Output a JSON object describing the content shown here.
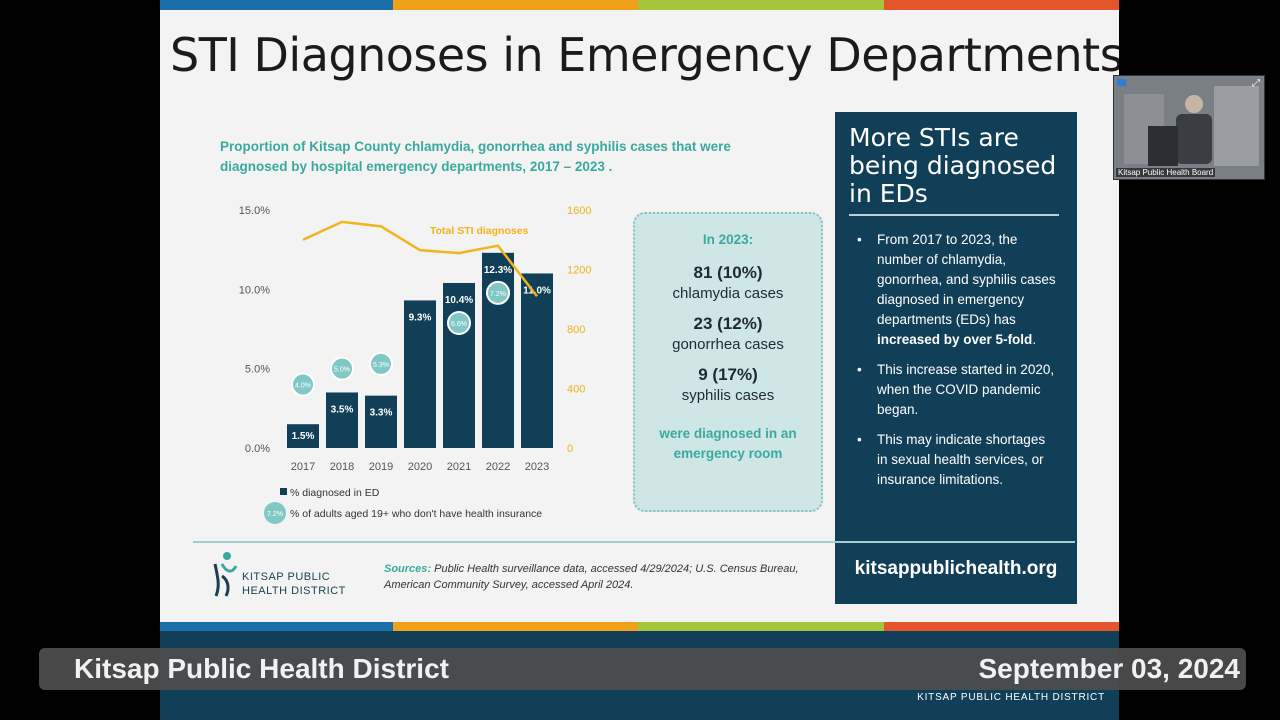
{
  "slide": {
    "title": "STI Diagnoses in Emergency Departments",
    "chart_subtitle": "Proportion of Kitsap County chlamydia, gonorrhea and syphilis cases that were diagnosed by hospital emergency departments, 2017 – 2023 .",
    "colors": {
      "navy": "#123f58",
      "teal": "#3aa9a0",
      "line_yellow": "#f0b41c",
      "bar": "#123f58"
    }
  },
  "chart_data": {
    "type": "bar",
    "categories": [
      "2017",
      "2018",
      "2019",
      "2020",
      "2021",
      "2022",
      "2023"
    ],
    "series": [
      {
        "name": "% diagnosed in ED",
        "values": [
          1.5,
          3.5,
          3.3,
          9.3,
          10.4,
          12.3,
          11.0
        ],
        "labels": [
          "1.5%",
          "3.5%",
          "3.3%",
          "9.3%",
          "10.4%",
          "12.3%",
          "11.0%"
        ]
      },
      {
        "name": "% of adults aged 19+ who don't have health insurance",
        "values": [
          4.0,
          5.0,
          5.3,
          null,
          6.6,
          7.2,
          null
        ],
        "labels": [
          "4.0%",
          "5.0%",
          "5.3%",
          "",
          "6.6%",
          "7.2%",
          ""
        ]
      },
      {
        "name": "Total STI diagnoses",
        "type": "line",
        "axis": "right",
        "values": [
          1400,
          1520,
          1490,
          1330,
          1310,
          1360,
          1020
        ]
      }
    ],
    "y_left_ticks": [
      "15.0%",
      "10.0%",
      "5.0%",
      "0.0%"
    ],
    "y_right_ticks": [
      "1600",
      "1200",
      "800",
      "400",
      "0"
    ],
    "ylim_left": [
      0,
      15
    ],
    "ylim_right": [
      0,
      1600
    ],
    "line_label": "Total STI diagnoses",
    "legend": [
      {
        "marker": "square",
        "text": "% diagnosed in ED"
      },
      {
        "marker": "bubble",
        "marker_text": "7.2%",
        "text": "% of adults aged 19+ who don't have health insurance"
      }
    ],
    "grid": false
  },
  "callout": {
    "year": "In 2023:",
    "items": [
      {
        "count": "81 (10%)",
        "label": "chlamydia cases"
      },
      {
        "count": "23 (12%)",
        "label": "gonorrhea cases"
      },
      {
        "count": "9 (17%)",
        "label": "syphilis cases"
      }
    ],
    "footer": "were diagnosed in an emergency room"
  },
  "side_panel": {
    "heading": "More STIs are being diagnosed in EDs",
    "bullets": [
      {
        "before": "From 2017 to 2023, the number of chlamydia, gonorrhea, and syphilis cases diagnosed in emergency departments (EDs) has ",
        "bold": "increased by over 5-fold",
        "after": "."
      },
      {
        "before": "This increase started in 2020, when the COVID pandemic began.",
        "bold": "",
        "after": ""
      },
      {
        "before": "This may indicate shortages in sexual health services, or insurance limitations.",
        "bold": "",
        "after": ""
      }
    ],
    "url": "kitsappublichealth.org"
  },
  "footer": {
    "logo_line1": "KITSAP PUBLIC",
    "logo_line2": "HEALTH DISTRICT",
    "sources_lead": "Sources:",
    "sources_text": " Public Health surveillance data, accessed 4/29/2024; U.S. Census Bureau, American Community Survey, accessed April 2024.",
    "org_small": "KITSAP PUBLIC HEALTH DISTRICT"
  },
  "video": {
    "tile_label": "Kitsap Public Health Board"
  },
  "lower_third": {
    "left": "Kitsap Public Health District",
    "right": "September 03, 2024"
  }
}
